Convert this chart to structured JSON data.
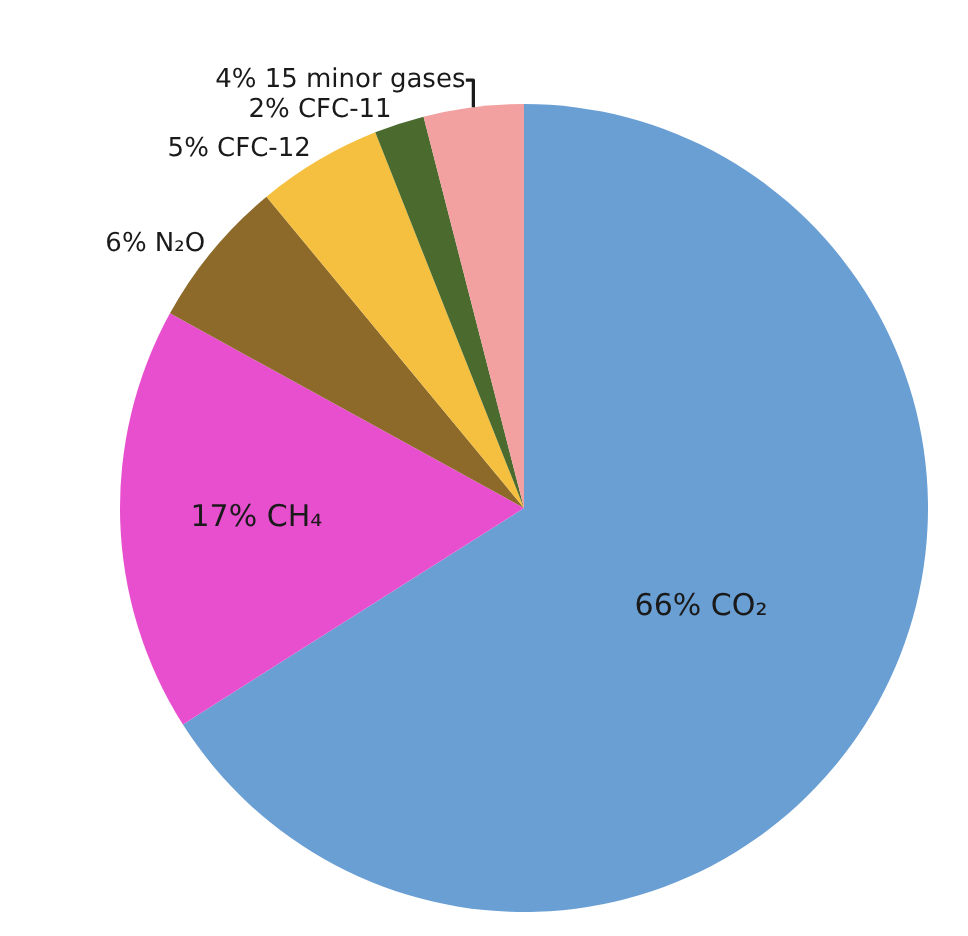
{
  "chart_data": {
    "type": "pie",
    "categories": [
      "CO₂",
      "CH₄",
      "N₂O",
      "CFC-12",
      "CFC-11",
      "15 minor gases"
    ],
    "values": [
      66,
      17,
      6,
      5,
      2,
      4
    ],
    "value_labels": [
      "66%",
      "17%",
      "6%",
      "5%",
      "2%",
      "4%"
    ],
    "colors": [
      "#6a9fd4",
      "#e84fcf",
      "#8d6a2a",
      "#f5c040",
      "#4a6a2e",
      "#f2a0a0"
    ],
    "legend": false
  }
}
